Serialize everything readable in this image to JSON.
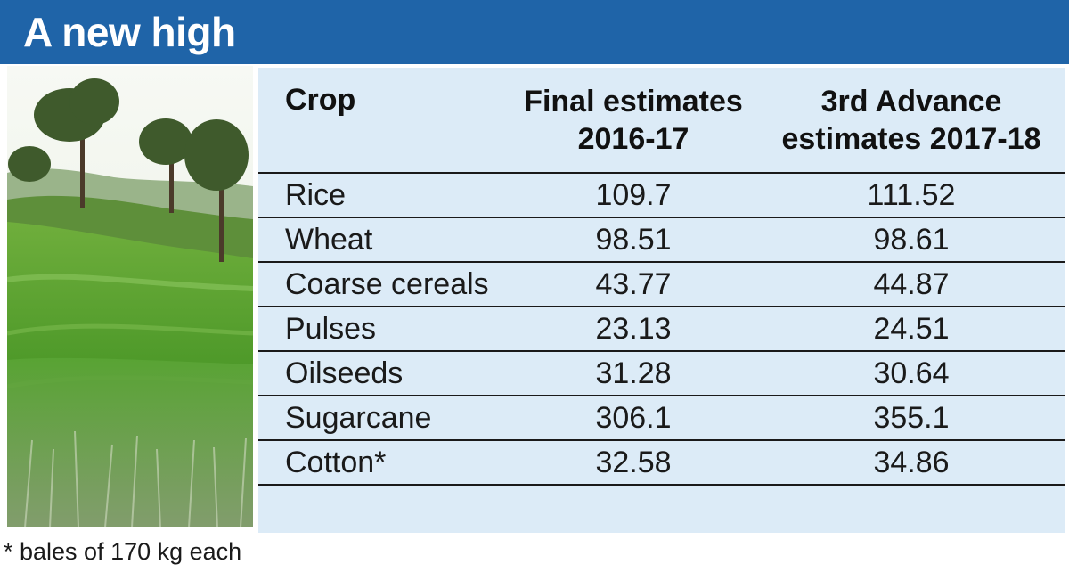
{
  "header": {
    "title": "A new high"
  },
  "photo": {
    "icon": "rice-field-photo"
  },
  "chart_data": {
    "type": "table",
    "columns": [
      "Crop",
      "Final estimates\n2016-17",
      "3rd Advance\nestimates 2017-18"
    ],
    "rows": [
      [
        "Rice",
        "109.7",
        "111.52"
      ],
      [
        "Wheat",
        "98.51",
        "98.61"
      ],
      [
        "Coarse cereals",
        "43.77",
        "44.87"
      ],
      [
        "Pulses",
        "23.13",
        "24.51"
      ],
      [
        "Oilseeds",
        "31.28",
        "30.64"
      ],
      [
        "Sugarcane",
        "306.1",
        "355.1"
      ],
      [
        "Cotton*",
        "32.58",
        "34.86"
      ]
    ]
  },
  "footnote": "* bales of 170 kg each",
  "colors": {
    "banner": "#1f64a8",
    "table_background": "#dcebf7",
    "title_text": "#ffffff",
    "rule": "#1a1a1a"
  }
}
